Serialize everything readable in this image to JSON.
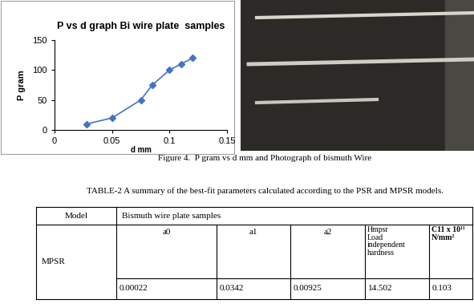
{
  "chart_data": {
    "type": "line",
    "title": "P vs d graph Bi wire plate  samples",
    "x_label": "d mm",
    "y_label": "P gram",
    "x": [
      0.028,
      0.05,
      0.075,
      0.085,
      0.1,
      0.11,
      0.12
    ],
    "values": [
      10,
      20,
      50,
      75,
      100,
      110,
      120
    ],
    "color": "#4472c4",
    "marker": "diamond",
    "line_style": "solid",
    "xlim": [
      0,
      0.15
    ],
    "xticks": [
      0,
      0.05,
      0.1,
      0.15
    ],
    "ylim": [
      0,
      150
    ],
    "yticks": [
      0,
      50,
      100,
      150
    ],
    "grid": false
  },
  "caption": "Figure 4.  P gram vs d mm and Photograph of bismuth Wire",
  "table": {
    "title": "TABLE-2 A summary of the best-fit parameters calculated according to the PSR and MPSR models.",
    "header": [
      "Model",
      "Bismuth wire plate samples"
    ],
    "model": "MPSR",
    "columns": [
      "a0",
      "a1",
      "a2",
      "Hmpsr\nLoad\nindependent\nhardness",
      "C11 x 10¹¹\nN/mm²"
    ],
    "values": [
      "0.00022",
      "0.0342",
      "0.00925",
      "14.502",
      "0.103"
    ]
  }
}
